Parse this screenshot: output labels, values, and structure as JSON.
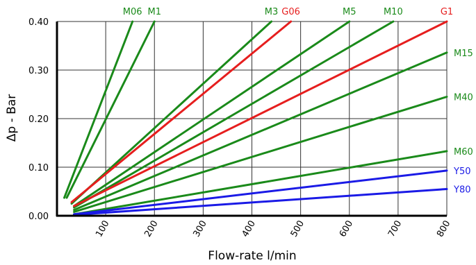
{
  "chart_data": {
    "type": "line",
    "title": "",
    "xlabel": "Flow-rate l/min",
    "ylabel": "Δp - Bar",
    "xlim": [
      0,
      800
    ],
    "ylim": [
      0,
      0.4
    ],
    "xticks": [
      100,
      200,
      300,
      400,
      500,
      600,
      700,
      800
    ],
    "xtick_labels": [
      "100",
      "200",
      "300",
      "400",
      "500",
      "600",
      "700",
      "800"
    ],
    "yticks": [
      0,
      0.1,
      0.2,
      0.3,
      0.4
    ],
    "ytick_labels": [
      "0.00",
      "0.10",
      "0.20",
      "0.30",
      "0.40"
    ],
    "grid": true,
    "series": [
      {
        "name": "M06",
        "color": "#1a8a1a",
        "points": [
          [
            15,
            0.037
          ],
          [
            155,
            0.4
          ]
        ],
        "label_at": "top"
      },
      {
        "name": "M1",
        "color": "#1a8a1a",
        "points": [
          [
            20,
            0.037
          ],
          [
            200,
            0.4
          ]
        ],
        "label_at": "top"
      },
      {
        "name": "M3",
        "color": "#1a8a1a",
        "points": [
          [
            30,
            0.025
          ],
          [
            440,
            0.4
          ]
        ],
        "label_at": "top"
      },
      {
        "name": "G06",
        "color": "#e61e1e",
        "points": [
          [
            30,
            0.028
          ],
          [
            480,
            0.4
          ]
        ],
        "label_at": "top"
      },
      {
        "name": "M5",
        "color": "#1a8a1a",
        "points": [
          [
            35,
            0.02
          ],
          [
            600,
            0.4
          ]
        ],
        "label_at": "top"
      },
      {
        "name": "M10",
        "color": "#1a8a1a",
        "points": [
          [
            35,
            0.017
          ],
          [
            690,
            0.4
          ]
        ],
        "label_at": "top"
      },
      {
        "name": "G1",
        "color": "#e61e1e",
        "points": [
          [
            35,
            0.02
          ],
          [
            800,
            0.4
          ]
        ],
        "label_at": "top"
      },
      {
        "name": "M15",
        "color": "#1a8a1a",
        "points": [
          [
            35,
            0.012
          ],
          [
            800,
            0.336
          ]
        ],
        "label_at": "right"
      },
      {
        "name": "M40",
        "color": "#1a8a1a",
        "points": [
          [
            35,
            0.008
          ],
          [
            800,
            0.245
          ]
        ],
        "label_at": "right"
      },
      {
        "name": "M60",
        "color": "#1a8a1a",
        "points": [
          [
            35,
            0.003
          ],
          [
            800,
            0.133
          ]
        ],
        "label_at": "right"
      },
      {
        "name": "Y50",
        "color": "#1a1ae6",
        "points": [
          [
            35,
            0.003
          ],
          [
            800,
            0.093
          ]
        ],
        "label_at": "right"
      },
      {
        "name": "Y80",
        "color": "#1a1ae6",
        "points": [
          [
            35,
            0.002
          ],
          [
            800,
            0.055
          ]
        ],
        "label_at": "right"
      }
    ]
  }
}
